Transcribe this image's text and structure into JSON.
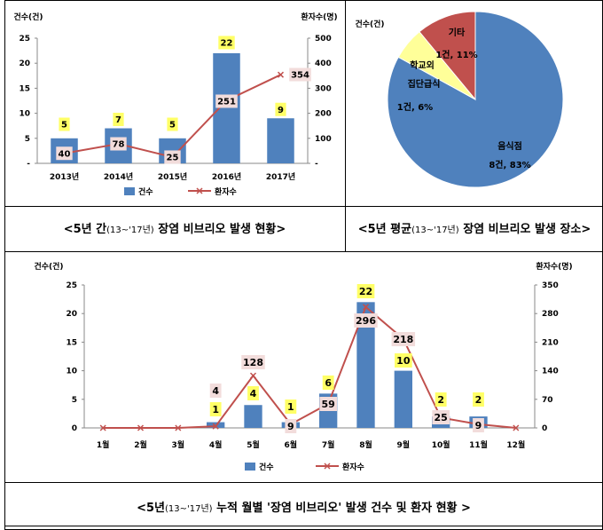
{
  "captions": {
    "chart1": {
      "pre": "<5년 간",
      "range": "(13~'17년)",
      "post": " 장염 비브리오 발생 현황>"
    },
    "chart2": {
      "pre": "<5년 평균",
      "range": "(13~'17년)",
      "post": " 장염 비브리오 발생 장소>"
    },
    "chart3": {
      "pre": "<5년",
      "range": "(13~'17년)",
      "post": " 누적 월별 '장염 비브리오' 발생 건수 및 환자 현황 >"
    }
  },
  "colors": {
    "bar": "#4F81BD",
    "line": "#C0504D",
    "pie_food": "#4F81BD",
    "pie_school": "#FFFF99",
    "pie_other": "#C0504D",
    "label_yellow": "#FFFF66",
    "label_pink": "#F2DCDB"
  },
  "chart_data": [
    {
      "type": "bar",
      "categories": [
        "2013년",
        "2014년",
        "2015년",
        "2016년",
        "2017년"
      ],
      "series": [
        {
          "name": "건수",
          "type": "bar",
          "axis": "left",
          "values": [
            5,
            7,
            5,
            22,
            9
          ]
        },
        {
          "name": "환자수",
          "type": "line",
          "axis": "right",
          "values": [
            40,
            78,
            25,
            251,
            354
          ]
        }
      ],
      "ylabel": "건수(건)",
      "y2label": "환자수(명)",
      "ylim": [
        0,
        25
      ],
      "y2lim": [
        0,
        500
      ],
      "yticks": [
        "25",
        "20",
        "15",
        "10",
        "5",
        "-"
      ],
      "y2ticks": [
        "500",
        "400",
        "300",
        "200",
        "100",
        "-"
      ],
      "grid": false,
      "legend": "bottom"
    },
    {
      "type": "pie",
      "title_label": "건수(건)",
      "slices": [
        {
          "name": "음식점",
          "label": "8건, 83%",
          "value": 83
        },
        {
          "name": "학교외 집단급식",
          "name_lines": [
            "학교외",
            "집단급식"
          ],
          "label": "1건, 6%",
          "value": 6
        },
        {
          "name": "기타",
          "label": "1건, 11%",
          "value": 11
        }
      ]
    },
    {
      "type": "bar",
      "categories": [
        "1월",
        "2월",
        "3월",
        "4월",
        "5월",
        "6월",
        "7월",
        "8월",
        "9월",
        "10월",
        "11월",
        "12월"
      ],
      "series": [
        {
          "name": "건수",
          "type": "bar",
          "axis": "left",
          "values": [
            0,
            0,
            0,
            1,
            4,
            1,
            6,
            22,
            10,
            2,
            2,
            0
          ],
          "labels": [
            "",
            "",
            "",
            "1",
            "4",
            "1",
            "6",
            "22",
            "10",
            "2",
            "2",
            ""
          ]
        },
        {
          "name": "환자수",
          "type": "line",
          "axis": "right",
          "values": [
            0,
            0,
            0,
            4,
            128,
            9,
            59,
            296,
            218,
            25,
            9,
            0
          ],
          "labels": [
            "",
            "",
            "",
            "4",
            "128",
            "9",
            "59",
            "296",
            "218",
            "25",
            "9",
            ""
          ]
        }
      ],
      "ylabel": "건수(건)",
      "y2label": "환자수(명)",
      "ylim": [
        0,
        25
      ],
      "y2lim": [
        0,
        350
      ],
      "yticks": [
        "25",
        "20",
        "15",
        "10",
        "5",
        "0"
      ],
      "y2ticks": [
        "350",
        "280",
        "210",
        "140",
        "70",
        "0"
      ],
      "grid": false,
      "legend": "bottom"
    }
  ]
}
